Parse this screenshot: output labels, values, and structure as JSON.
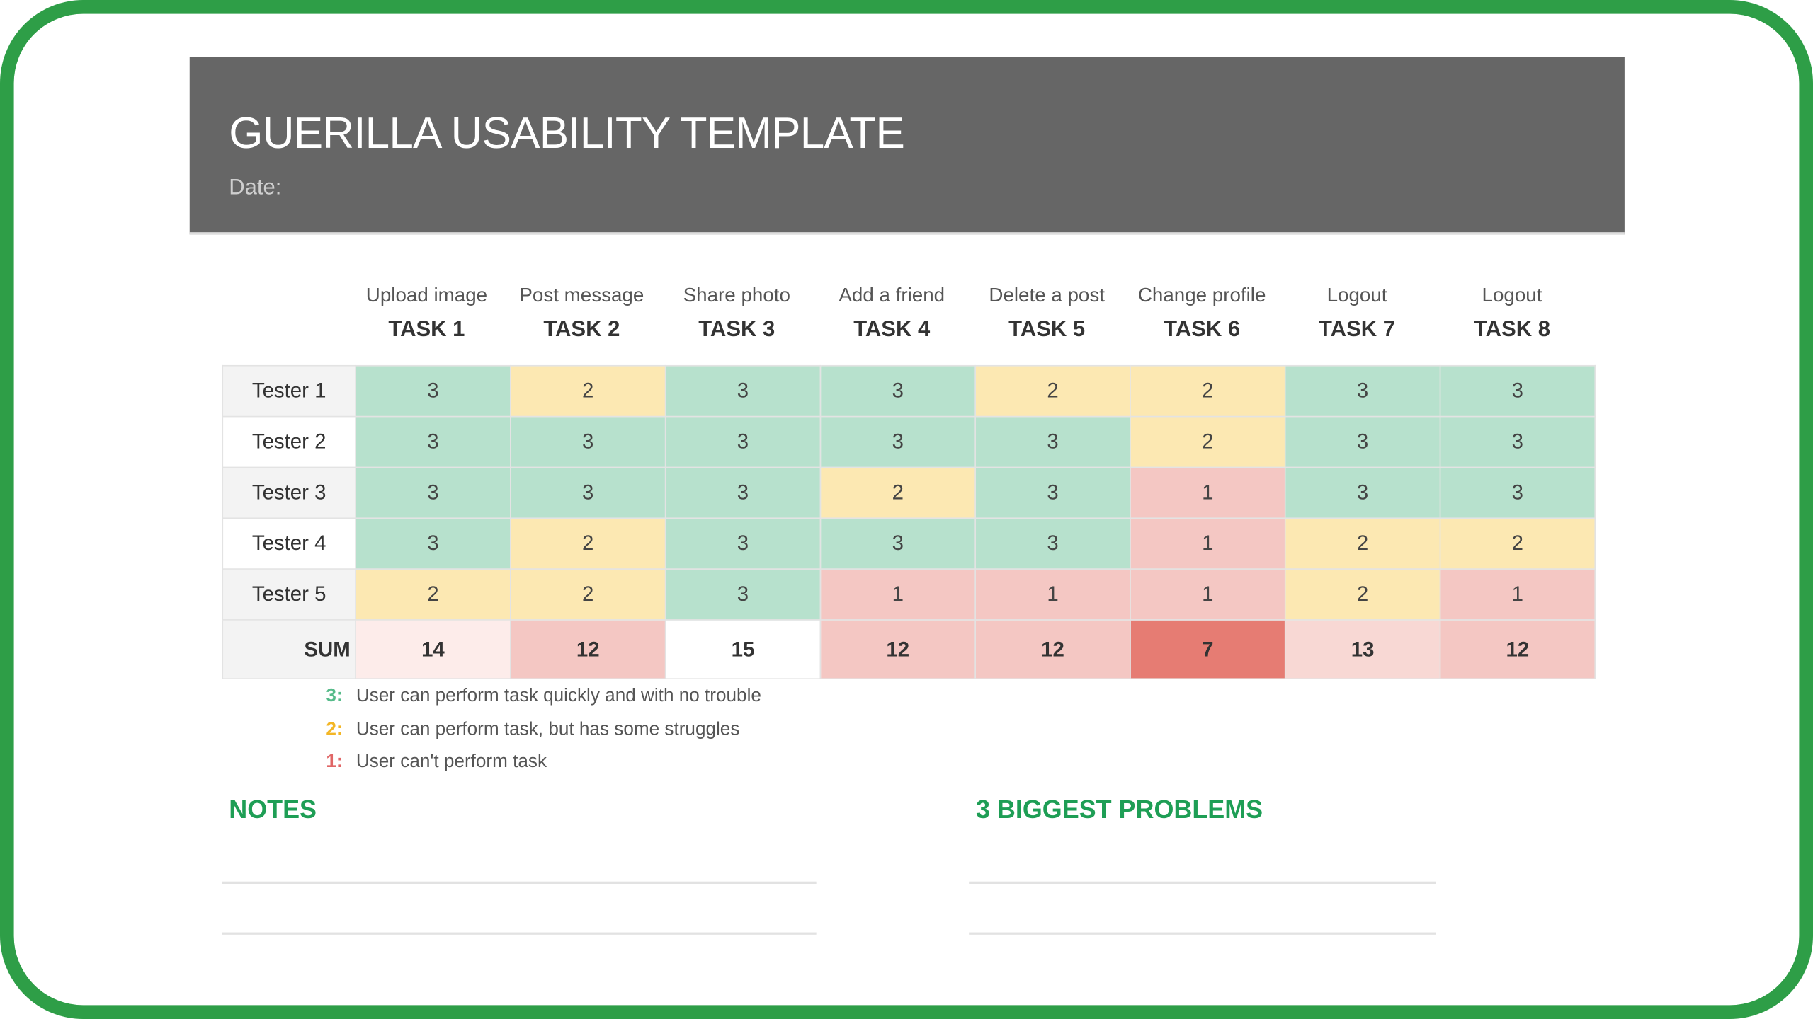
{
  "header": {
    "title": "GUERILLA USABILITY TEMPLATE",
    "date_label": "Date:"
  },
  "tasks": [
    {
      "subtitle": "Upload image",
      "label": "TASK 1"
    },
    {
      "subtitle": "Post message",
      "label": "TASK 2"
    },
    {
      "subtitle": "Share photo",
      "label": "TASK 3"
    },
    {
      "subtitle": "Add a friend",
      "label": "TASK 4"
    },
    {
      "subtitle": "Delete a post",
      "label": "TASK 5"
    },
    {
      "subtitle": "Change profile",
      "label": "TASK 6"
    },
    {
      "subtitle": "Logout",
      "label": "TASK 7"
    },
    {
      "subtitle": "Logout",
      "label": "TASK 8"
    }
  ],
  "rows": [
    {
      "tester": "Tester 1",
      "scores": [
        3,
        2,
        3,
        3,
        2,
        2,
        3,
        3
      ]
    },
    {
      "tester": "Tester  2",
      "scores": [
        3,
        3,
        3,
        3,
        3,
        2,
        3,
        3
      ]
    },
    {
      "tester": "Tester 3",
      "scores": [
        3,
        3,
        3,
        2,
        3,
        1,
        3,
        3
      ]
    },
    {
      "tester": "Tester 4",
      "scores": [
        3,
        2,
        3,
        3,
        3,
        1,
        2,
        2
      ]
    },
    {
      "tester": "Tester 5",
      "scores": [
        2,
        2,
        3,
        1,
        1,
        1,
        2,
        1
      ]
    }
  ],
  "sum": {
    "label": "SUM",
    "values": [
      14,
      12,
      15,
      12,
      12,
      7,
      13,
      12
    ]
  },
  "score_colors": {
    "3": "#b7e1cd",
    "2": "#fce8b2",
    "1": "#f4c7c3"
  },
  "sum_colors": [
    "#fdecea",
    "#f4c7c3",
    "#ffffff",
    "#f4c7c3",
    "#f4c7c3",
    "#e67c73",
    "#f8d8d4",
    "#f4c7c3"
  ],
  "legend": [
    {
      "key": "3:",
      "text": "User can perform task quickly and with no trouble",
      "color": "#57bb8a"
    },
    {
      "key": "2:",
      "text": "User can perform task, but has some struggles",
      "color": "#f3b626"
    },
    {
      "key": "1:",
      "text": "User can't perform task",
      "color": "#e06666"
    }
  ],
  "sections": {
    "notes": "NOTES",
    "problems": "3 BIGGEST PROBLEMS"
  }
}
